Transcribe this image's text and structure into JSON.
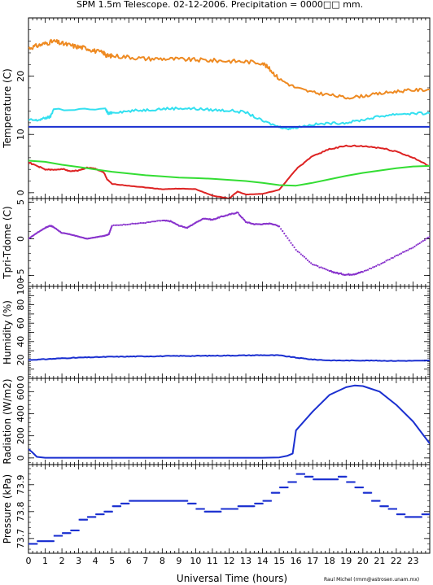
{
  "title": "SPM 1.5m Telescope. 02-12-2006. Precipitation = 0000",
  "title_box": "□□",
  "title_unit": "mm.",
  "xlabel": "Universal Time (hours)",
  "credit": "Raul Michel (rmm@astrosen.unam.mx)",
  "x_ticks": [
    0,
    1,
    2,
    3,
    4,
    5,
    6,
    7,
    8,
    9,
    10,
    11,
    12,
    13,
    14,
    15,
    16,
    17,
    18,
    19,
    20,
    21,
    22,
    23
  ],
  "xlim": [
    0,
    24
  ],
  "chart_data": [
    {
      "type": "line",
      "ylabel": "Temperature (C)",
      "ylim": [
        -1,
        30
      ],
      "yticks": [
        0,
        10,
        20
      ],
      "ytick_labels": [
        "0",
        "10",
        "20"
      ],
      "series": [
        {
          "color": "#ee8a22",
          "style": "jagged",
          "x": [
            0,
            0.5,
            1,
            1.5,
            2,
            2.5,
            3,
            3.5,
            4,
            4.5,
            4.7,
            5,
            6,
            7,
            8,
            9,
            10,
            11,
            12,
            13,
            14,
            14.5,
            15,
            16,
            17,
            18,
            19,
            20,
            21,
            22,
            23,
            24
          ],
          "y": [
            24.8,
            25.2,
            25.6,
            26,
            25.6,
            25.3,
            25,
            24.8,
            24.3,
            24,
            23.5,
            23.5,
            23.3,
            23,
            23,
            22.9,
            22.8,
            22.7,
            22.6,
            22.5,
            22.3,
            21,
            19.5,
            18,
            17.2,
            16.8,
            16.3,
            16.6,
            17,
            17.4,
            17.6,
            17.7
          ]
        },
        {
          "color": "#33e0f0",
          "style": "jagged",
          "x": [
            0,
            0.5,
            1,
            1.3,
            1.5,
            4.6,
            4.8,
            5,
            6,
            7,
            8,
            9,
            10,
            11,
            12,
            13,
            14,
            15,
            15.5,
            16,
            17,
            18,
            19,
            20,
            21,
            22,
            23,
            24
          ],
          "y": [
            12.5,
            12.4,
            12.8,
            13,
            14.3,
            14.3,
            13.5,
            13.8,
            14,
            14.2,
            14.4,
            14.5,
            14.4,
            14.2,
            14.1,
            13.8,
            12.3,
            11.3,
            11.0,
            11.2,
            11.7,
            11.9,
            12,
            12.5,
            13.1,
            13.5,
            13.6,
            13.6
          ]
        },
        {
          "color": "#1a2fd0",
          "style": "smooth",
          "x": [
            0,
            24
          ],
          "y": [
            11.3,
            11.3
          ]
        },
        {
          "color": "#dd2222",
          "style": "jagged",
          "x": [
            0,
            0.5,
            1,
            1.5,
            2,
            2.5,
            3,
            3.5,
            4,
            4.5,
            4.7,
            5,
            6,
            7,
            8,
            9,
            10,
            11,
            12,
            12.5,
            13,
            14,
            15,
            16,
            17,
            18,
            19,
            20,
            21,
            22,
            23,
            24
          ],
          "y": [
            5.2,
            4.6,
            4.0,
            3.9,
            4.1,
            3.7,
            3.8,
            4.3,
            4.1,
            3.5,
            2.3,
            1.5,
            1.2,
            0.9,
            0.6,
            0.7,
            0.6,
            -0.5,
            -1,
            0.2,
            -0.3,
            -0.2,
            0.5,
            4,
            6.3,
            7.5,
            8,
            8,
            7.7,
            7.1,
            6,
            4.5
          ]
        },
        {
          "color": "#33dd33",
          "style": "smooth",
          "x": [
            0,
            1,
            2,
            3,
            4,
            5,
            6,
            7,
            8,
            9,
            10,
            11,
            12,
            13,
            14,
            15,
            16,
            17,
            18,
            19,
            20,
            21,
            22,
            23,
            24
          ],
          "y": [
            5.5,
            5.3,
            4.8,
            4.4,
            4.0,
            3.6,
            3.3,
            3.0,
            2.8,
            2.6,
            2.5,
            2.4,
            2.2,
            2.0,
            1.7,
            1.3,
            1.2,
            1.7,
            2.3,
            2.9,
            3.4,
            3.8,
            4.2,
            4.5,
            4.6
          ]
        }
      ]
    },
    {
      "type": "scatter",
      "ylabel": "Tpri-Tdome (C)",
      "ylim": [
        -6.5,
        5.5
      ],
      "yticks": [
        5,
        0,
        -5
      ],
      "ytick_labels": [
        "5",
        "0",
        "−5"
      ],
      "series": [
        {
          "color": "#8833cc",
          "style": "jagged",
          "x": [
            0,
            0.5,
            1,
            1.3,
            1.5,
            2,
            2.5,
            3,
            3.5,
            4,
            4.5,
            4.8,
            5,
            6,
            7,
            8,
            8.5,
            9,
            9.5,
            10,
            10.5,
            11,
            11.5,
            12,
            12.5,
            13,
            13.5,
            14,
            14.5,
            15,
            16,
            17,
            18,
            18.5,
            19,
            19.5,
            20,
            21,
            22,
            23,
            24
          ],
          "y": [
            0,
            0.8,
            1.5,
            1.8,
            1.6,
            0.8,
            0.6,
            0.3,
            0,
            0.2,
            0.4,
            0.6,
            1.8,
            2.0,
            2.2,
            2.5,
            2.4,
            1.8,
            1.5,
            2.2,
            2.8,
            2.6,
            3.0,
            3.3,
            3.6,
            2.3,
            2.0,
            2.0,
            2.1,
            1.7,
            -1.5,
            -3.5,
            -4.4,
            -4.7,
            -4.9,
            -4.8,
            -4.5,
            -3.5,
            -2.3,
            -1.2,
            0.3
          ]
        }
      ]
    },
    {
      "type": "line",
      "ylabel": "Humidity (%)",
      "ylim": [
        0,
        100
      ],
      "yticks": [
        0,
        10,
        20,
        30,
        40,
        50,
        60,
        70,
        80,
        90,
        100
      ],
      "ytick_labels": [
        "0",
        "",
        "20",
        "",
        "40",
        "",
        "60",
        "",
        "80",
        "",
        "100"
      ],
      "series": [
        {
          "color": "#1a2fd0",
          "style": "jagged",
          "x": [
            0,
            1,
            2,
            3,
            4,
            5,
            6,
            7,
            8,
            9,
            10,
            11,
            12,
            13,
            14,
            15,
            16,
            17,
            18,
            19,
            20,
            21,
            22,
            23,
            24
          ],
          "y": [
            20,
            20.8,
            21.8,
            22.5,
            23,
            23.5,
            23.7,
            24,
            24.1,
            24.4,
            24.4,
            24.6,
            24.8,
            25,
            25.2,
            25,
            22.5,
            20.5,
            19.5,
            19.4,
            19.4,
            19.2,
            19,
            19.1,
            19.3
          ]
        }
      ]
    },
    {
      "type": "line",
      "ylabel": "Radiation (W/m2)",
      "ylim": [
        -60,
        720
      ],
      "yticks": [
        0,
        200,
        400,
        600
      ],
      "ytick_labels": [
        "0",
        "200",
        "400",
        "600"
      ],
      "series": [
        {
          "color": "#1a2fd0",
          "style": "smooth",
          "x": [
            0,
            0.2,
            0.5,
            1,
            2,
            4,
            6,
            8,
            10,
            12,
            14,
            15,
            15.5,
            15.8,
            16,
            17,
            18,
            19,
            19.5,
            20,
            21,
            22,
            23,
            24
          ],
          "y": [
            80,
            55,
            10,
            2,
            2,
            2,
            2,
            2,
            2,
            2,
            2,
            5,
            20,
            40,
            250,
            420,
            570,
            640,
            655,
            650,
            600,
            480,
            330,
            130
          ]
        }
      ]
    },
    {
      "type": "scatter",
      "ylabel": "Pressure (kPa)",
      "ylim": [
        73.645,
        73.975
      ],
      "yticks": [
        73.7,
        73.8,
        73.9
      ],
      "ytick_labels": [
        "73.7",
        "73.8",
        "73.9"
      ],
      "series": [
        {
          "color": "#1a2fd0",
          "style": "steps",
          "x": [
            0,
            0.5,
            1,
            1.5,
            2,
            2.5,
            3,
            3.5,
            4,
            4.5,
            5,
            5.5,
            6,
            6.5,
            7,
            7.5,
            8,
            8.5,
            9,
            9.5,
            10,
            10.5,
            11,
            11.5,
            12,
            12.5,
            13,
            13.5,
            14,
            14.5,
            15,
            15.5,
            16,
            16.5,
            17,
            17.5,
            18,
            18.5,
            19,
            19.5,
            20,
            20.5,
            21,
            21.5,
            22,
            22.5,
            23,
            23.5,
            24
          ],
          "y": [
            73.68,
            73.69,
            73.69,
            73.71,
            73.72,
            73.73,
            73.77,
            73.78,
            73.79,
            73.8,
            73.82,
            73.83,
            73.84,
            73.84,
            73.84,
            73.84,
            73.84,
            73.84,
            73.84,
            73.83,
            73.81,
            73.8,
            73.8,
            73.81,
            73.81,
            73.82,
            73.82,
            73.83,
            73.84,
            73.87,
            73.89,
            73.91,
            73.94,
            73.93,
            73.92,
            73.92,
            73.92,
            73.93,
            73.91,
            73.89,
            73.87,
            73.84,
            73.82,
            73.81,
            73.79,
            73.78,
            73.78,
            73.79,
            73.8
          ]
        }
      ]
    }
  ]
}
